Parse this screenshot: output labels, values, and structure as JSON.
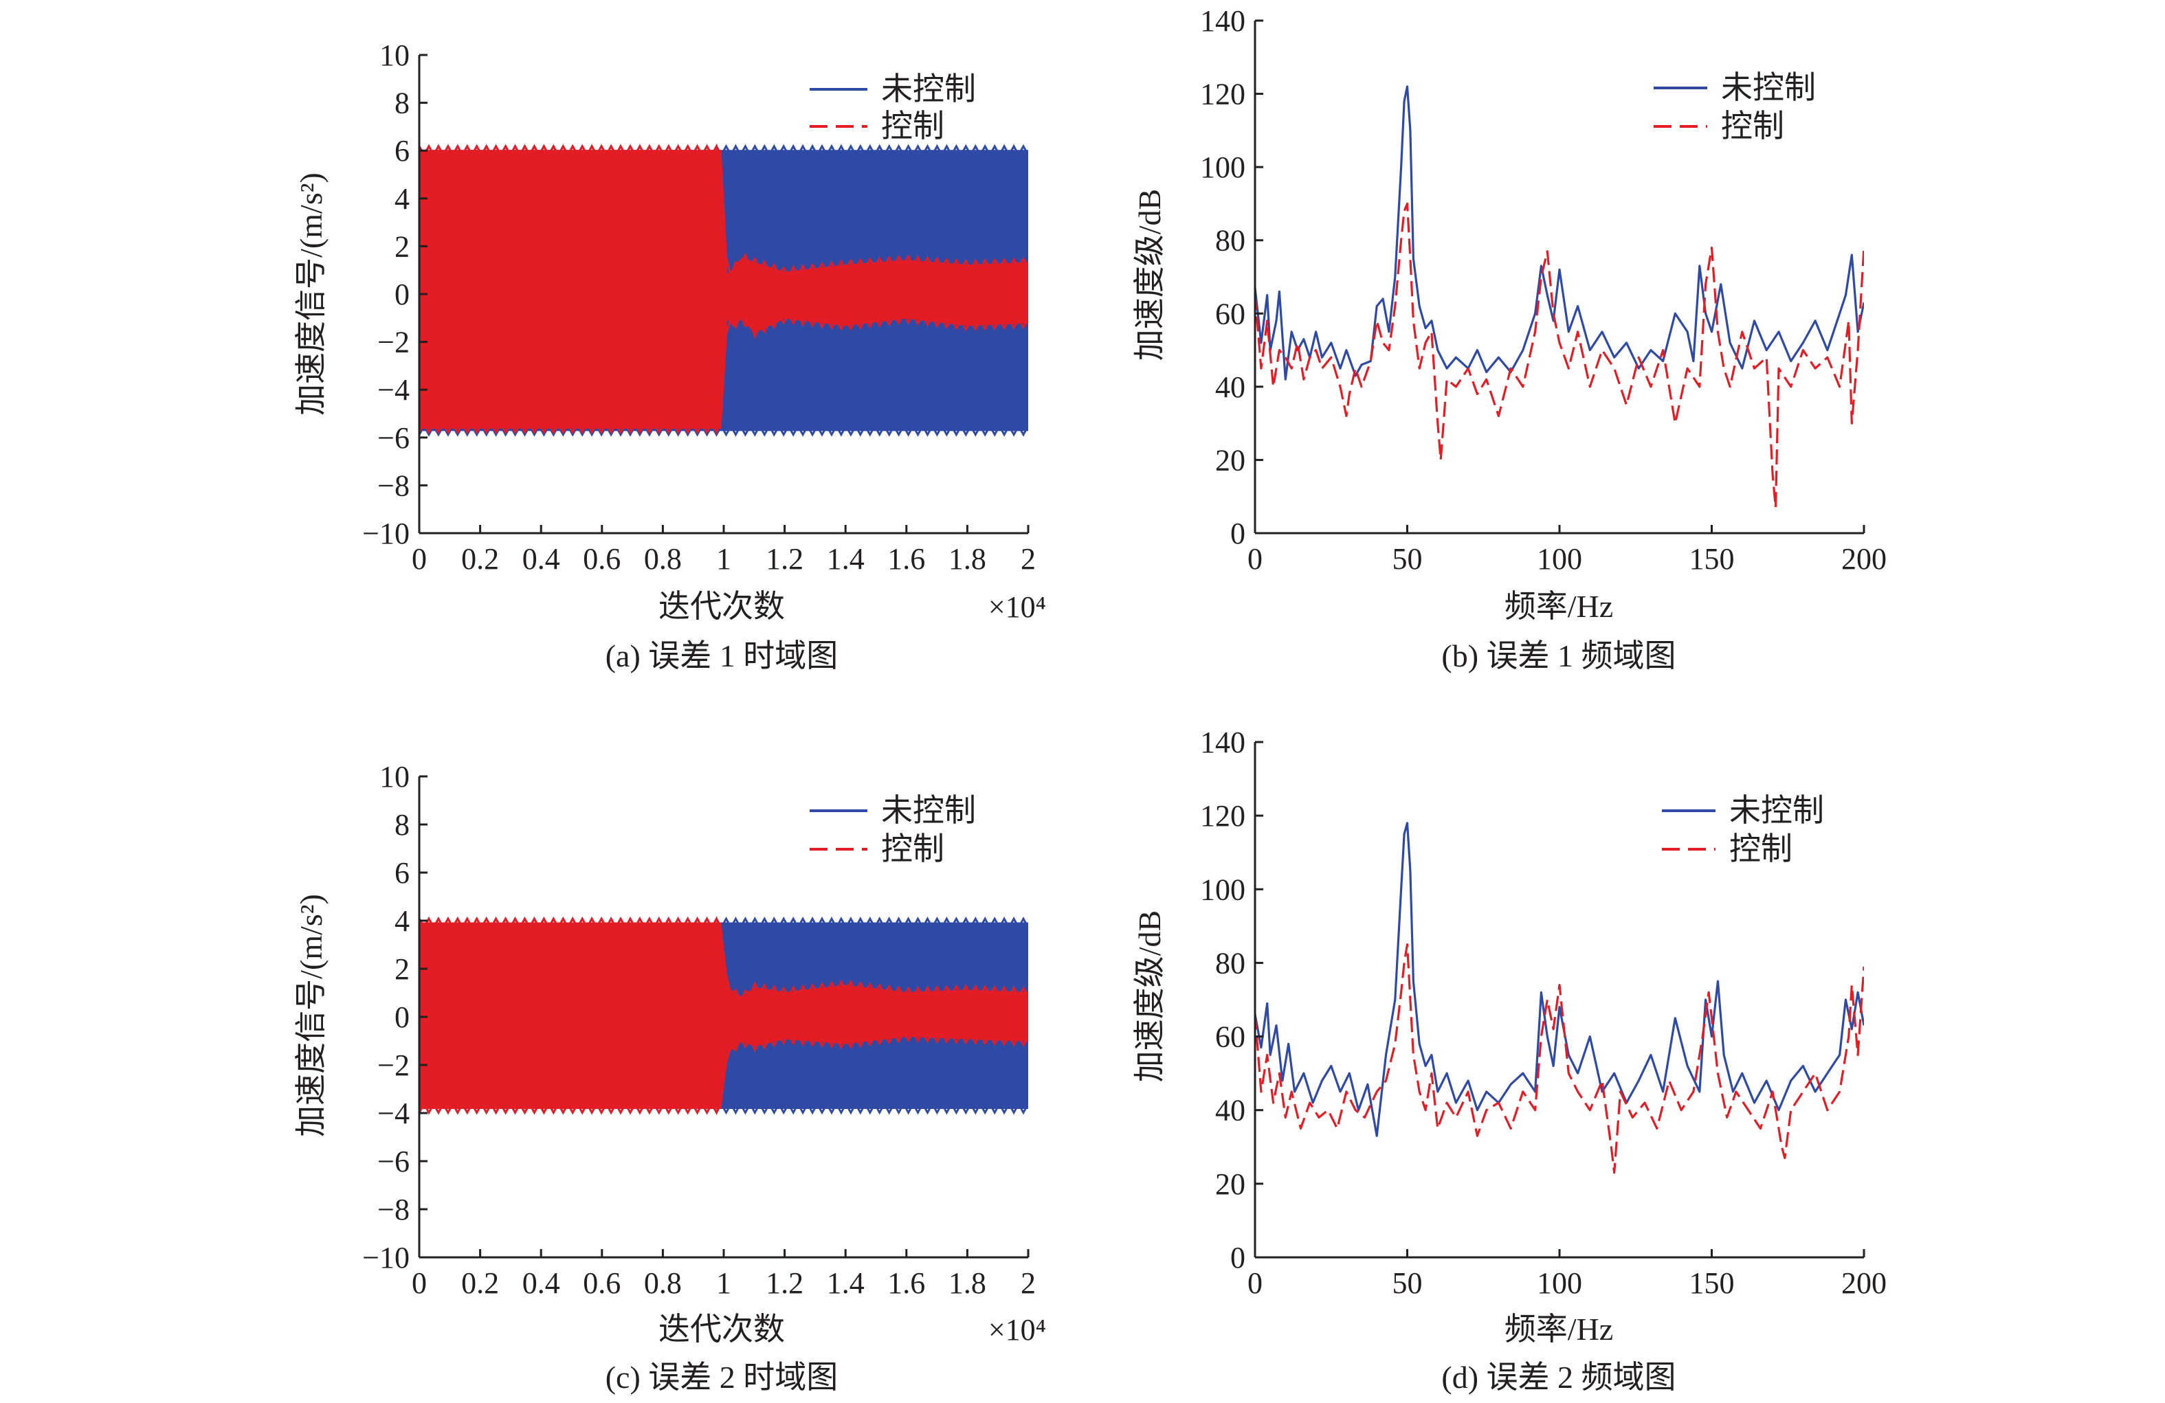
{
  "colors": {
    "uncontrolled": "#2f4aa5",
    "controlled": "#e31d25",
    "axis": "#231f20"
  },
  "panels": [
    {
      "caption": "(a) 误差 1 时域图",
      "xlabel": "迭代次数",
      "ylabel": "加速度信号/(m/s²)",
      "xmultiplier": "×10⁴",
      "legend": [
        "未控制",
        "控制"
      ]
    },
    {
      "caption": "(b) 误差 1 频域图",
      "xlabel": "频率/Hz",
      "ylabel": "加速度级/dB",
      "legend": [
        "未控制",
        "控制"
      ]
    },
    {
      "caption": "(c) 误差 2 时域图",
      "xlabel": "迭代次数",
      "ylabel": "加速度信号/(m/s²)",
      "xmultiplier": "×10⁴",
      "legend": [
        "未控制",
        "控制"
      ]
    },
    {
      "caption": "(d) 误差 2 频域图",
      "xlabel": "频率/Hz",
      "ylabel": "加速度级/dB",
      "legend": [
        "未控制",
        "控制"
      ]
    }
  ],
  "chart_data": [
    {
      "type": "area",
      "title": "(a) 误差 1 时域图",
      "xlabel": "迭代次数",
      "ylabel": "加速度信号/(m/s²)",
      "x_multiplier": "×10⁴",
      "xlim": [
        0,
        2.0
      ],
      "ylim": [
        -10,
        10
      ],
      "xticks": [
        0,
        0.2,
        0.4,
        0.6,
        0.8,
        1.0,
        1.2,
        1.4,
        1.6,
        1.8,
        2.0
      ],
      "yticks": [
        -10,
        -8,
        -6,
        -4,
        -2,
        0,
        2,
        4,
        6,
        8,
        10
      ],
      "legend_position": "top-right",
      "series": [
        {
          "name": "未控制",
          "style": "solid",
          "x": [
            0,
            1.0,
            1.02,
            2.0
          ],
          "upper": [
            6.0,
            6.0,
            6.0,
            6.0
          ],
          "lower": [
            -5.7,
            -5.7,
            -5.7,
            -5.7
          ]
        },
        {
          "name": "控制",
          "style": "dashed",
          "x": [
            0,
            0.99,
            1.01,
            1.03,
            1.06,
            1.1,
            1.2,
            1.4,
            1.6,
            1.8,
            2.0
          ],
          "upper": [
            6.0,
            6.0,
            0.8,
            1.0,
            1.5,
            1.3,
            0.9,
            1.2,
            1.4,
            1.2,
            1.3
          ],
          "lower": [
            -5.6,
            -5.6,
            -1.0,
            -1.3,
            -1.0,
            -1.6,
            -1.0,
            -1.3,
            -1.0,
            -1.3,
            -1.2
          ]
        }
      ]
    },
    {
      "type": "line",
      "title": "(b) 误差 1 频域图",
      "xlabel": "频率/Hz",
      "ylabel": "加速度级/dB",
      "xlim": [
        0,
        200
      ],
      "ylim": [
        0,
        140
      ],
      "xticks": [
        0,
        50,
        100,
        150,
        200
      ],
      "yticks": [
        0,
        20,
        40,
        60,
        80,
        100,
        120,
        140
      ],
      "legend_position": "top-right",
      "series": [
        {
          "name": "未控制",
          "style": "solid",
          "x": [
            0,
            2,
            4,
            5,
            7,
            8,
            10,
            12,
            14,
            16,
            18,
            20,
            22,
            25,
            28,
            30,
            33,
            35,
            38,
            40,
            42,
            44,
            46,
            48,
            49,
            50,
            51,
            52,
            54,
            56,
            58,
            60,
            63,
            66,
            70,
            73,
            76,
            80,
            84,
            88,
            92,
            94,
            96,
            98,
            100,
            103,
            106,
            110,
            114,
            118,
            122,
            126,
            130,
            134,
            138,
            142,
            144,
            146,
            148,
            150,
            153,
            156,
            160,
            164,
            168,
            172,
            176,
            180,
            184,
            188,
            192,
            194,
            196,
            198,
            200
          ],
          "y": [
            67,
            52,
            65,
            50,
            58,
            66,
            42,
            55,
            50,
            53,
            48,
            55,
            48,
            52,
            45,
            50,
            43,
            46,
            47,
            62,
            64,
            55,
            70,
            100,
            118,
            122,
            110,
            75,
            62,
            56,
            58,
            50,
            45,
            48,
            45,
            50,
            44,
            48,
            44,
            50,
            60,
            73,
            65,
            58,
            72,
            55,
            62,
            50,
            55,
            48,
            52,
            45,
            50,
            47,
            60,
            55,
            47,
            73,
            60,
            55,
            68,
            52,
            45,
            58,
            50,
            55,
            47,
            52,
            58,
            50,
            60,
            65,
            76,
            55,
            63
          ]
        },
        {
          "name": "控制",
          "style": "dashed",
          "x": [
            0,
            2,
            4,
            6,
            8,
            10,
            12,
            14,
            16,
            18,
            20,
            22,
            25,
            28,
            30,
            31,
            33,
            35,
            38,
            40,
            42,
            44,
            46,
            48,
            49,
            50,
            51,
            52,
            54,
            56,
            58,
            60,
            61,
            63,
            66,
            70,
            73,
            76,
            80,
            84,
            88,
            92,
            94,
            96,
            98,
            100,
            103,
            106,
            110,
            114,
            118,
            122,
            126,
            130,
            134,
            138,
            142,
            146,
            148,
            150,
            152,
            154,
            156,
            160,
            164,
            168,
            170,
            171,
            172,
            176,
            180,
            184,
            188,
            192,
            195,
            196,
            198,
            200
          ],
          "y": [
            65,
            45,
            58,
            40,
            50,
            48,
            45,
            52,
            42,
            48,
            50,
            45,
            48,
            40,
            32,
            38,
            45,
            40,
            47,
            58,
            52,
            50,
            62,
            80,
            88,
            90,
            75,
            58,
            45,
            52,
            55,
            30,
            20,
            42,
            40,
            45,
            38,
            42,
            32,
            45,
            40,
            55,
            70,
            77,
            60,
            52,
            45,
            55,
            40,
            50,
            45,
            35,
            48,
            40,
            50,
            30,
            45,
            40,
            68,
            78,
            55,
            45,
            40,
            55,
            45,
            48,
            16,
            7,
            45,
            40,
            50,
            45,
            48,
            40,
            58,
            30,
            50,
            78
          ]
        }
      ]
    },
    {
      "type": "area",
      "title": "(c) 误差 2 时域图",
      "xlabel": "迭代次数",
      "ylabel": "加速度信号/(m/s²)",
      "x_multiplier": "×10⁴",
      "xlim": [
        0,
        2.0
      ],
      "ylim": [
        -10,
        10
      ],
      "xticks": [
        0,
        0.2,
        0.4,
        0.6,
        0.8,
        1.0,
        1.2,
        1.4,
        1.6,
        1.8,
        2.0
      ],
      "yticks": [
        -10,
        -8,
        -6,
        -4,
        -2,
        0,
        2,
        4,
        6,
        8,
        10
      ],
      "legend_position": "top-right",
      "series": [
        {
          "name": "未控制",
          "style": "solid",
          "x": [
            0,
            1.0,
            1.02,
            2.0
          ],
          "upper": [
            3.9,
            3.9,
            3.9,
            3.9
          ],
          "lower": [
            -3.8,
            -3.8,
            -3.8,
            -3.8
          ]
        },
        {
          "name": "控制",
          "style": "dashed",
          "x": [
            0,
            0.99,
            1.01,
            1.03,
            1.06,
            1.1,
            1.2,
            1.4,
            1.6,
            1.8,
            2.0
          ],
          "upper": [
            3.9,
            3.9,
            1.3,
            1.0,
            0.8,
            1.2,
            1.0,
            1.3,
            1.0,
            1.1,
            1.0
          ],
          "lower": [
            -3.8,
            -3.8,
            -1.5,
            -1.3,
            -1.0,
            -1.2,
            -0.9,
            -1.1,
            -0.8,
            -0.9,
            -1.0
          ]
        }
      ]
    },
    {
      "type": "line",
      "title": "(d) 误差 2 频域图",
      "xlabel": "频率/Hz",
      "ylabel": "加速度级/dB",
      "xlim": [
        0,
        200
      ],
      "ylim": [
        0,
        140
      ],
      "xticks": [
        0,
        50,
        100,
        150,
        200
      ],
      "yticks": [
        0,
        20,
        40,
        60,
        80,
        100,
        120,
        140
      ],
      "legend_position": "top-right",
      "series": [
        {
          "name": "未控制",
          "style": "solid",
          "x": [
            0,
            2,
            4,
            5,
            7,
            9,
            11,
            13,
            16,
            19,
            22,
            25,
            28,
            31,
            34,
            37,
            40,
            43,
            46,
            48,
            49,
            50,
            51,
            52,
            54,
            56,
            58,
            60,
            63,
            66,
            70,
            73,
            76,
            80,
            84,
            88,
            92,
            94,
            96,
            98,
            100,
            103,
            106,
            110,
            114,
            118,
            122,
            126,
            130,
            134,
            138,
            142,
            146,
            148,
            150,
            152,
            154,
            157,
            160,
            164,
            168,
            172,
            176,
            180,
            184,
            188,
            192,
            194,
            196,
            198,
            200
          ],
          "y": [
            66,
            57,
            69,
            55,
            63,
            48,
            58,
            45,
            50,
            42,
            48,
            52,
            45,
            50,
            40,
            47,
            33,
            55,
            70,
            100,
            115,
            118,
            105,
            75,
            58,
            52,
            55,
            45,
            50,
            42,
            48,
            40,
            45,
            42,
            47,
            50,
            45,
            72,
            60,
            52,
            68,
            55,
            50,
            60,
            45,
            50,
            42,
            48,
            55,
            45,
            65,
            52,
            45,
            70,
            60,
            75,
            55,
            45,
            50,
            42,
            48,
            40,
            48,
            52,
            45,
            50,
            55,
            70,
            62,
            72,
            63
          ]
        },
        {
          "name": "控制",
          "style": "dashed",
          "x": [
            0,
            2,
            4,
            6,
            8,
            10,
            12,
            15,
            18,
            21,
            24,
            27,
            30,
            33,
            36,
            40,
            43,
            46,
            48,
            49,
            50,
            51,
            52,
            54,
            56,
            58,
            60,
            63,
            66,
            70,
            73,
            76,
            80,
            84,
            88,
            92,
            94,
            96,
            98,
            100,
            103,
            106,
            110,
            114,
            117,
            118,
            120,
            124,
            128,
            132,
            136,
            140,
            144,
            147,
            149,
            150,
            152,
            155,
            158,
            162,
            166,
            170,
            173,
            174,
            176,
            180,
            184,
            188,
            192,
            195,
            196,
            198,
            200
          ],
          "y": [
            66,
            45,
            55,
            42,
            50,
            38,
            45,
            35,
            42,
            38,
            40,
            35,
            45,
            40,
            38,
            45,
            48,
            58,
            72,
            80,
            85,
            70,
            55,
            45,
            40,
            50,
            35,
            42,
            38,
            45,
            33,
            40,
            42,
            35,
            45,
            40,
            60,
            70,
            62,
            74,
            50,
            45,
            40,
            48,
            30,
            23,
            45,
            38,
            42,
            35,
            48,
            40,
            45,
            60,
            72,
            65,
            50,
            38,
            45,
            40,
            35,
            45,
            30,
            27,
            40,
            45,
            50,
            40,
            45,
            60,
            74,
            55,
            79
          ]
        }
      ]
    }
  ]
}
